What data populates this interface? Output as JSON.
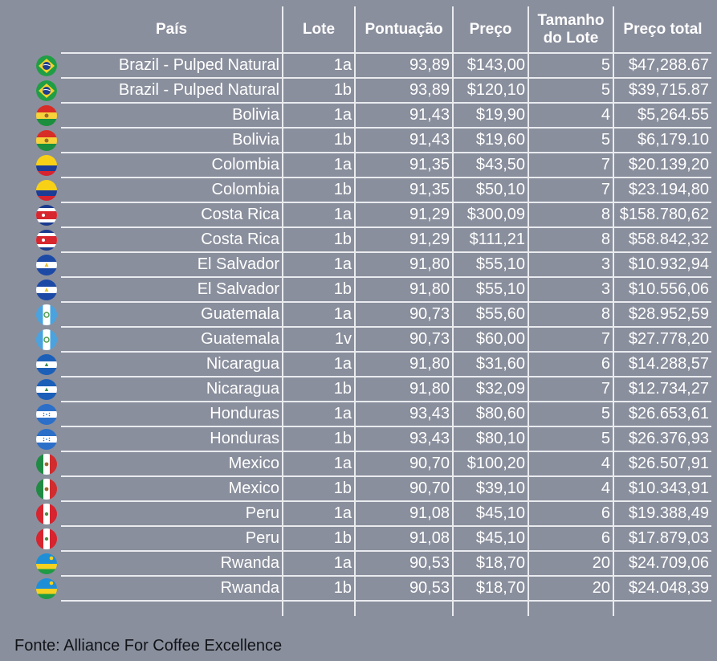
{
  "table": {
    "headers": {
      "pais": "País",
      "lote": "Lote",
      "pontuacao": "Pontuação",
      "preco": "Preço",
      "tamanho": "Tamanho do Lote",
      "preco_total": "Preço total"
    },
    "rows": [
      {
        "flag": "brazil-flag-icon",
        "pais": "Brazil - Pulped Natural",
        "lote": "1a",
        "pontuacao": "93,89",
        "preco": "$143,00",
        "tamanho": "5",
        "preco_total": "$47,288.67"
      },
      {
        "flag": "brazil-flag-icon",
        "pais": "Brazil - Pulped Natural",
        "lote": "1b",
        "pontuacao": "93,89",
        "preco": "$120,10",
        "tamanho": "5",
        "preco_total": "$39,715.87"
      },
      {
        "flag": "bolivia-flag-icon",
        "pais": "Bolivia",
        "lote": "1a",
        "pontuacao": "91,43",
        "preco": "$19,90",
        "tamanho": "4",
        "preco_total": "$5,264.55"
      },
      {
        "flag": "bolivia-flag-icon",
        "pais": "Bolivia",
        "lote": "1b",
        "pontuacao": "91,43",
        "preco": "$19,60",
        "tamanho": "5",
        "preco_total": "$6,179.10"
      },
      {
        "flag": "colombia-flag-icon",
        "pais": "Colombia",
        "lote": "1a",
        "pontuacao": "91,35",
        "preco": "$43,50",
        "tamanho": "7",
        "preco_total": "$20.139,20"
      },
      {
        "flag": "colombia-flag-icon",
        "pais": "Colombia",
        "lote": "1b",
        "pontuacao": "91,35",
        "preco": "$50,10",
        "tamanho": "7",
        "preco_total": "$23.194,80"
      },
      {
        "flag": "costa-rica-flag-icon",
        "pais": "Costa Rica",
        "lote": "1a",
        "pontuacao": "91,29",
        "preco": "$300,09",
        "tamanho": "8",
        "preco_total": "$158.780,62"
      },
      {
        "flag": "costa-rica-flag-icon",
        "pais": "Costa Rica",
        "lote": "1b",
        "pontuacao": "91,29",
        "preco": "$111,21",
        "tamanho": "8",
        "preco_total": "$58.842,32"
      },
      {
        "flag": "el-salvador-flag-icon",
        "pais": "El Salvador",
        "lote": "1a",
        "pontuacao": "91,80",
        "preco": "$55,10",
        "tamanho": "3",
        "preco_total": "$10.932,94"
      },
      {
        "flag": "el-salvador-flag-icon",
        "pais": "El Salvador",
        "lote": "1b",
        "pontuacao": "91,80",
        "preco": "$55,10",
        "tamanho": "3",
        "preco_total": "$10.556,06"
      },
      {
        "flag": "guatemala-flag-icon",
        "pais": "Guatemala",
        "lote": "1a",
        "pontuacao": "90,73",
        "preco": "$55,60",
        "tamanho": "8",
        "preco_total": "$28.952,59"
      },
      {
        "flag": "guatemala-flag-icon",
        "pais": "Guatemala",
        "lote": "1v",
        "pontuacao": "90,73",
        "preco": "$60,00",
        "tamanho": "7",
        "preco_total": "$27.778,20"
      },
      {
        "flag": "nicaragua-flag-icon",
        "pais": "Nicaragua",
        "lote": "1a",
        "pontuacao": "91,80",
        "preco": "$31,60",
        "tamanho": "6",
        "preco_total": "$14.288,57"
      },
      {
        "flag": "nicaragua-flag-icon",
        "pais": "Nicaragua",
        "lote": "1b",
        "pontuacao": "91,80",
        "preco": "$32,09",
        "tamanho": "7",
        "preco_total": "$12.734,27"
      },
      {
        "flag": "honduras-flag-icon",
        "pais": "Honduras",
        "lote": "1a",
        "pontuacao": "93,43",
        "preco": "$80,60",
        "tamanho": "5",
        "preco_total": "$26.653,61"
      },
      {
        "flag": "honduras-flag-icon",
        "pais": "Honduras",
        "lote": "1b",
        "pontuacao": "93,43",
        "preco": "$80,10",
        "tamanho": "5",
        "preco_total": "$26.376,93"
      },
      {
        "flag": "mexico-flag-icon",
        "pais": "Mexico",
        "lote": "1a",
        "pontuacao": "90,70",
        "preco": "$100,20",
        "tamanho": "4",
        "preco_total": "$26.507,91"
      },
      {
        "flag": "mexico-flag-icon",
        "pais": "Mexico",
        "lote": "1b",
        "pontuacao": "90,70",
        "preco": "$39,10",
        "tamanho": "4",
        "preco_total": "$10.343,91"
      },
      {
        "flag": "peru-flag-icon",
        "pais": "Peru",
        "lote": "1a",
        "pontuacao": "91,08",
        "preco": "$45,10",
        "tamanho": "6",
        "preco_total": "$19.388,49"
      },
      {
        "flag": "peru-flag-icon",
        "pais": "Peru",
        "lote": "1b",
        "pontuacao": "91,08",
        "preco": "$45,10",
        "tamanho": "6",
        "preco_total": "$17.879,03"
      },
      {
        "flag": "rwanda-flag-icon",
        "pais": "Rwanda",
        "lote": "1a",
        "pontuacao": "90,53",
        "preco": "$18,70",
        "tamanho": "20",
        "preco_total": "$24.709,06"
      },
      {
        "flag": "rwanda-flag-icon",
        "pais": "Rwanda",
        "lote": "1b",
        "pontuacao": "90,53",
        "preco": "$18,70",
        "tamanho": "20",
        "preco_total": "$24.048,39"
      }
    ]
  },
  "source": "Fonte: Alliance For Coffee Excellence",
  "colors": {
    "background": "#8a8f9d",
    "grid": "#e9ebef",
    "text": "#ffffff",
    "source_text": "#111418"
  }
}
